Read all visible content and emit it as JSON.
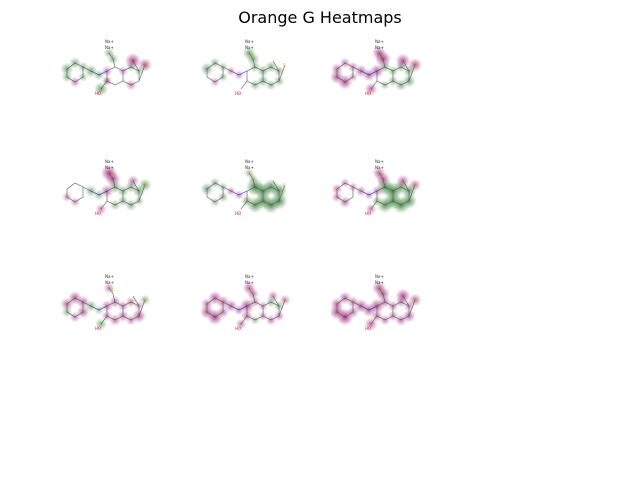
{
  "figure": {
    "title": "Orange G Heatmaps"
  },
  "molecule": {
    "counterions": [
      "Na+",
      "Na+"
    ],
    "hydroxyl_label": "HO",
    "sulfur_label": "S",
    "oxygen_label": "O",
    "nitrogen_label": "N"
  },
  "colors": {
    "positive": "#1f6b1f",
    "negative": "#8a0060",
    "bond": "#555555",
    "nitrogen": "#2020d0",
    "oxygen": "#d22020",
    "sulfur": "#b8a800"
  },
  "panels": [
    {
      "row": 0,
      "col": 0,
      "pos": [
        0.5,
        0.4,
        0.3,
        0.2,
        0.0,
        0.3,
        0.5,
        0.3,
        0.0,
        0.1,
        0.0,
        0.0,
        0.0,
        0.0,
        0.0,
        0.0,
        0.2,
        0.2,
        0.3,
        0.3,
        0.0,
        0.6,
        0.0
      ],
      "neg": [
        0.0,
        0.0,
        0.0,
        0.0,
        0.3,
        0.0,
        0.0,
        0.0,
        0.3,
        0.2,
        0.0,
        0.0,
        0.2,
        0.0,
        0.3,
        0.0,
        0.0,
        0.0,
        0.0,
        0.0,
        0.8,
        0.0,
        0.6
      ]
    },
    {
      "row": 0,
      "col": 1,
      "pos": [
        0.5,
        0.3,
        0.2,
        0.2,
        0.0,
        0.0,
        0.0,
        0.0,
        0.0,
        0.0,
        0.3,
        0.4,
        0.4,
        0.3,
        0.3,
        0.3,
        0.3,
        0.4,
        0.5,
        0.5,
        0.0,
        0.0,
        0.0
      ],
      "neg": [
        0.0,
        0.0,
        0.0,
        0.0,
        0.2,
        0.0,
        0.2,
        0.2,
        0.0,
        0.0,
        0.0,
        0.0,
        0.0,
        0.0,
        0.0,
        0.0,
        0.0,
        0.0,
        0.0,
        0.0,
        0.0,
        0.0,
        0.0
      ]
    },
    {
      "row": 0,
      "col": 2,
      "pos": [
        0.0,
        0.0,
        0.0,
        0.0,
        0.0,
        0.0,
        0.0,
        0.0,
        0.0,
        0.0,
        0.2,
        0.3,
        0.3,
        0.4,
        0.4,
        0.5,
        0.4,
        0.3,
        0.0,
        0.0,
        0.0,
        0.0,
        0.0
      ],
      "neg": [
        0.4,
        0.3,
        0.3,
        0.2,
        0.7,
        0.6,
        0.5,
        0.5,
        0.6,
        0.0,
        0.0,
        0.0,
        0.0,
        0.0,
        0.0,
        0.0,
        0.0,
        0.0,
        0.8,
        0.6,
        0.7,
        0.5,
        0.6
      ]
    },
    {
      "row": 1,
      "col": 0,
      "pos": [
        0.0,
        0.0,
        0.0,
        0.0,
        0.0,
        0.0,
        0.4,
        0.3,
        0.0,
        0.0,
        0.3,
        0.3,
        0.4,
        0.5,
        0.4,
        0.2,
        0.5,
        0.4,
        0.0,
        0.0,
        0.0,
        0.0,
        0.5
      ],
      "neg": [
        0.0,
        0.0,
        0.0,
        0.0,
        0.2,
        0.2,
        0.0,
        0.0,
        0.5,
        0.0,
        0.0,
        0.0,
        0.0,
        0.0,
        0.0,
        0.0,
        0.0,
        0.0,
        0.7,
        0.8,
        0.4,
        0.3,
        0.0
      ]
    },
    {
      "row": 1,
      "col": 1,
      "pos": [
        0.5,
        0.3,
        0.2,
        0.3,
        0.2,
        0.0,
        0.0,
        0.0,
        0.0,
        0.4,
        0.8,
        0.9,
        0.9,
        1.0,
        0.9,
        0.9,
        0.8,
        0.8,
        0.2,
        0.2,
        0.0,
        0.0,
        0.0
      ],
      "neg": [
        0.0,
        0.0,
        0.0,
        0.0,
        0.0,
        0.0,
        0.2,
        0.2,
        0.0,
        0.0,
        0.0,
        0.0,
        0.0,
        0.0,
        0.0,
        0.0,
        0.0,
        0.0,
        0.0,
        0.0,
        0.0,
        0.0,
        0.0
      ]
    },
    {
      "row": 1,
      "col": 2,
      "pos": [
        0.0,
        0.0,
        0.0,
        0.0,
        0.0,
        0.0,
        0.0,
        0.0,
        0.0,
        0.3,
        0.8,
        0.9,
        1.0,
        0.9,
        0.9,
        0.8,
        0.7,
        0.6,
        0.0,
        0.0,
        0.0,
        0.0,
        0.0
      ],
      "neg": [
        0.3,
        0.2,
        0.2,
        0.0,
        0.4,
        0.3,
        0.3,
        0.2,
        0.3,
        0.0,
        0.0,
        0.0,
        0.0,
        0.0,
        0.0,
        0.0,
        0.0,
        0.0,
        0.6,
        0.5,
        0.5,
        0.3,
        0.4
      ]
    },
    {
      "row": 2,
      "col": 0,
      "pos": [
        0.0,
        0.0,
        0.0,
        0.0,
        0.0,
        0.3,
        0.4,
        0.2,
        0.0,
        0.0,
        0.0,
        0.0,
        0.0,
        0.0,
        0.0,
        0.0,
        0.0,
        0.0,
        0.0,
        0.0,
        0.0,
        0.4,
        0.3
      ],
      "neg": [
        0.5,
        0.6,
        0.5,
        0.5,
        0.3,
        0.0,
        0.0,
        0.0,
        0.4,
        0.3,
        0.4,
        0.4,
        0.3,
        0.4,
        0.3,
        0.6,
        0.2,
        0.3,
        0.0,
        0.3,
        0.0,
        0.0,
        0.0
      ]
    },
    {
      "row": 2,
      "col": 1,
      "pos": [
        0.0,
        0.0,
        0.0,
        0.0,
        0.0,
        0.0,
        0.0,
        0.0,
        0.0,
        0.0,
        0.2,
        0.0,
        0.0,
        0.0,
        0.0,
        0.0,
        0.3,
        0.3,
        0.0,
        0.0,
        0.0,
        0.0,
        0.0
      ],
      "neg": [
        0.4,
        0.6,
        0.5,
        0.4,
        0.8,
        0.6,
        0.5,
        0.3,
        0.7,
        0.4,
        0.0,
        0.2,
        0.2,
        0.3,
        0.3,
        0.3,
        0.0,
        0.0,
        0.4,
        0.5,
        0.3,
        0.3,
        0.3
      ]
    },
    {
      "row": 2,
      "col": 2,
      "pos": [
        0.0,
        0.0,
        0.0,
        0.0,
        0.0,
        0.0,
        0.0,
        0.0,
        0.0,
        0.0,
        0.0,
        0.0,
        0.0,
        0.0,
        0.0,
        0.0,
        0.0,
        0.0,
        0.0,
        0.0,
        0.0,
        0.0,
        0.0
      ],
      "neg": [
        0.5,
        0.5,
        0.4,
        0.4,
        0.9,
        0.7,
        0.6,
        0.6,
        0.7,
        0.4,
        0.3,
        0.3,
        0.3,
        0.4,
        0.4,
        0.5,
        0.3,
        0.3,
        0.6,
        0.6,
        0.7,
        0.5,
        0.5
      ]
    }
  ]
}
